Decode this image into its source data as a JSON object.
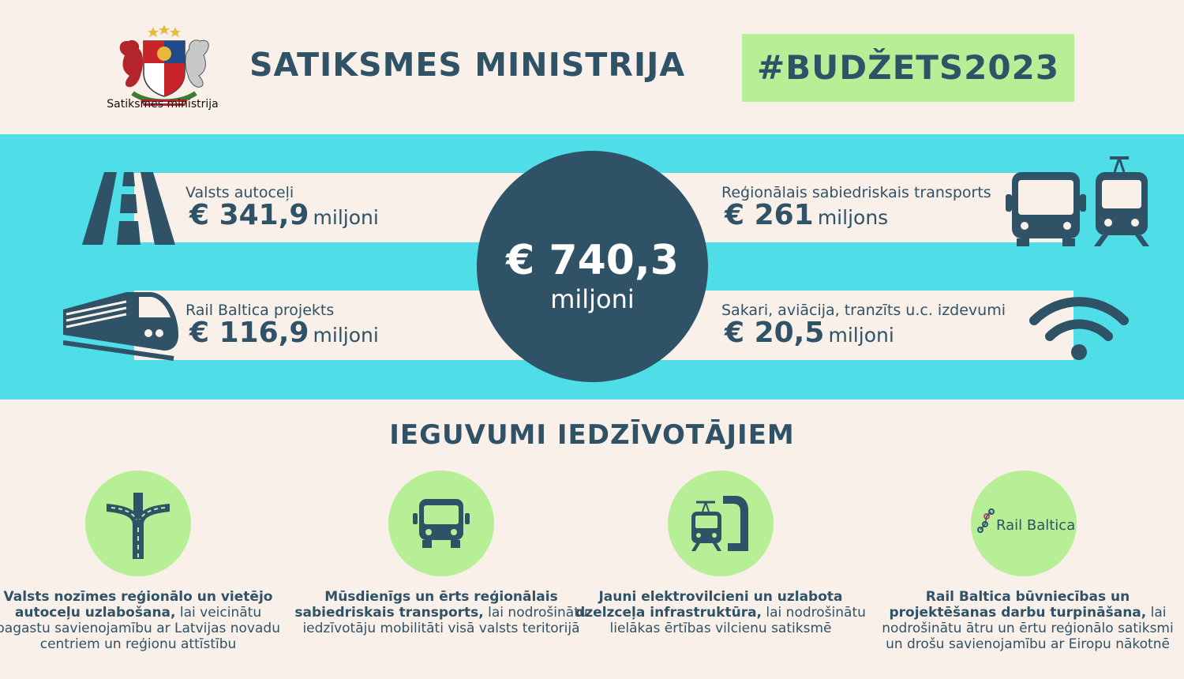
{
  "header": {
    "logo_caption": "Satiksmes ministrija",
    "title": "SATIKSMES MINISTRIJA",
    "hashtag": "#BUDŽETS2023"
  },
  "budget": {
    "total": {
      "value": "€ 740,3",
      "unit": "miljoni"
    },
    "items": [
      {
        "label": "Valsts autoceļi",
        "value": "€ 341,9",
        "unit": "miljoni",
        "icon": "road-icon"
      },
      {
        "label": "Reģionālais sabiedriskais transports",
        "value": "€ 261",
        "unit": "miljons",
        "icon": "bus-tram-icon"
      },
      {
        "label": "Rail Baltica projekts",
        "value": "€ 116,9",
        "unit": "miljoni",
        "icon": "train-icon"
      },
      {
        "label": "Sakari, aviācija, tranzīts u.c. izdevumi",
        "value": "€ 20,5",
        "unit": "miljoni",
        "icon": "wifi-icon"
      }
    ]
  },
  "benefits": {
    "title": "IEGUVUMI IEDZĪVOTĀJIEM",
    "items": [
      {
        "bold": "Valsts nozīmes reģionālo un vietējo autoceļu uzlabošana,",
        "rest": " lai veicinātu pagastu savienojamību ar Latvijas novadu centriem un reģionu attīstību",
        "icon": "road-fork-icon"
      },
      {
        "bold": "Mūsdienīgs un ērts reģionālais sabiedriskais transports,",
        "rest": " lai nodrošinātu iedzīvotāju mobilitāti visā valsts teritorijā",
        "icon": "bus-icon"
      },
      {
        "bold": "Jauni elektrovilcieni un uzlabota dzelzceļa infrastruktūra,",
        "rest": " lai nodrošinātu lielākas ērtības vilcienu satiksmē",
        "icon": "electric-train-icon"
      },
      {
        "bold": "Rail Baltica būvniecības un projektēšanas darbu turpināšana,",
        "rest": " lai nodrošinātu ātru un ērtu reģionālo satiksmi un drošu savienojamību ar Eiropu nākotnē",
        "icon": "rail-baltica-logo",
        "logo_text": "Rail Baltica"
      }
    ]
  },
  "colors": {
    "background": "#f9f0ea",
    "navy": "#2f5266",
    "cyan": "#4fdde8",
    "green": "#b7ef96"
  }
}
